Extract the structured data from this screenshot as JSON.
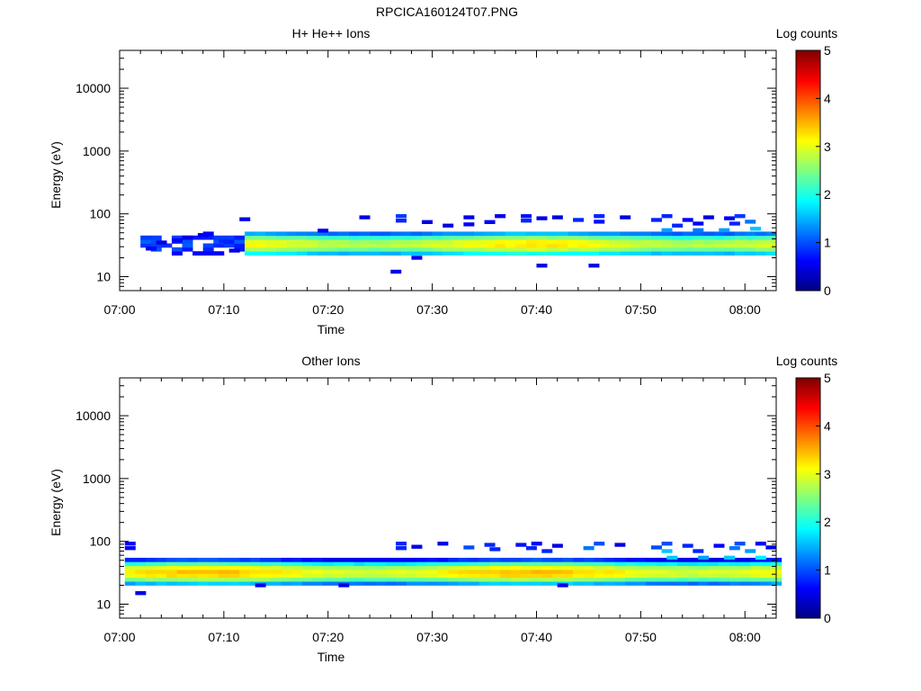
{
  "title": "RPCICA160124T07.PNG",
  "colors": {
    "axis": "#000000",
    "background": "#ffffff"
  },
  "colormap": [
    "#000080",
    "#0000ff",
    "#0080ff",
    "#00ffff",
    "#80ff80",
    "#ffff00",
    "#ff8000",
    "#ff0000",
    "#800000"
  ],
  "chart_data": [
    {
      "type": "heatmap",
      "title": "H+ He++ Ions",
      "xlabel": "Time",
      "ylabel": "Energy (eV)",
      "x_ticks": [
        "07:00",
        "07:10",
        "07:20",
        "07:30",
        "07:40",
        "07:50",
        "08:00"
      ],
      "y_ticks": [
        "10",
        "100",
        "1000",
        "10000"
      ],
      "y_scale": "log",
      "ylim": [
        6,
        40000
      ],
      "xlim_minutes": [
        0,
        63
      ],
      "colorbar": {
        "label": "Log counts",
        "ticks": [
          "0",
          "1",
          "2",
          "3",
          "4",
          "5"
        ],
        "range": [
          0,
          5
        ]
      },
      "band": {
        "pre_start_min": 0.0,
        "pre_end_min": 12.0,
        "pre_level": 1.0,
        "main_start_min": 12.0,
        "main_end_min": 63.0,
        "energy_low_eV": 22,
        "energy_high_eV": 48,
        "core_energy_eV": 33,
        "core_level": 3.0,
        "edge_level": 1.8
      },
      "sparse_cells": [
        {
          "t": 2.5,
          "e": 28,
          "v": 0.6
        },
        {
          "t": 3.5,
          "e": 35,
          "v": 0.5
        },
        {
          "t": 5.0,
          "e": 38,
          "v": 0.6
        },
        {
          "t": 6.0,
          "e": 42,
          "v": 0.5
        },
        {
          "t": 7.5,
          "e": 46,
          "v": 0.5
        },
        {
          "t": 9.5,
          "e": 37,
          "v": 0.8
        },
        {
          "t": 10.5,
          "e": 26,
          "v": 0.5
        },
        {
          "t": 11.5,
          "e": 82,
          "v": 0.5
        },
        {
          "t": 19.0,
          "e": 54,
          "v": 0.6
        },
        {
          "t": 23.0,
          "e": 88,
          "v": 0.5
        },
        {
          "t": 26.0,
          "e": 12,
          "v": 0.5
        },
        {
          "t": 26.5,
          "e": 78,
          "v": 0.8
        },
        {
          "t": 26.5,
          "e": 92,
          "v": 0.9
        },
        {
          "t": 28.0,
          "e": 20,
          "v": 0.5
        },
        {
          "t": 29.0,
          "e": 74,
          "v": 0.5
        },
        {
          "t": 31.0,
          "e": 65,
          "v": 0.5
        },
        {
          "t": 33.0,
          "e": 68,
          "v": 0.6
        },
        {
          "t": 33.0,
          "e": 88,
          "v": 0.5
        },
        {
          "t": 35.0,
          "e": 74,
          "v": 0.6
        },
        {
          "t": 36.0,
          "e": 92,
          "v": 0.5
        },
        {
          "t": 38.5,
          "e": 78,
          "v": 0.8
        },
        {
          "t": 38.5,
          "e": 92,
          "v": 0.7
        },
        {
          "t": 40.0,
          "e": 15,
          "v": 0.5
        },
        {
          "t": 40.0,
          "e": 85,
          "v": 0.5
        },
        {
          "t": 41.5,
          "e": 88,
          "v": 0.5
        },
        {
          "t": 43.5,
          "e": 80,
          "v": 0.8
        },
        {
          "t": 45.0,
          "e": 15,
          "v": 0.5
        },
        {
          "t": 45.5,
          "e": 75,
          "v": 0.7
        },
        {
          "t": 45.5,
          "e": 92,
          "v": 0.8
        },
        {
          "t": 48.0,
          "e": 88,
          "v": 0.5
        },
        {
          "t": 51.0,
          "e": 80,
          "v": 0.8
        },
        {
          "t": 52.0,
          "e": 92,
          "v": 0.8
        },
        {
          "t": 53.0,
          "e": 65,
          "v": 0.8
        },
        {
          "t": 54.0,
          "e": 80,
          "v": 0.6
        },
        {
          "t": 55.0,
          "e": 70,
          "v": 0.6
        },
        {
          "t": 56.0,
          "e": 88,
          "v": 0.5
        },
        {
          "t": 58.0,
          "e": 85,
          "v": 0.6
        },
        {
          "t": 58.5,
          "e": 70,
          "v": 0.8
        },
        {
          "t": 59.0,
          "e": 92,
          "v": 0.9
        },
        {
          "t": 60.0,
          "e": 75,
          "v": 1.2
        },
        {
          "t": 52.0,
          "e": 55,
          "v": 1.4
        },
        {
          "t": 55.0,
          "e": 55,
          "v": 1.2
        },
        {
          "t": 57.5,
          "e": 55,
          "v": 1.4
        },
        {
          "t": 60.5,
          "e": 58,
          "v": 1.6
        }
      ]
    },
    {
      "type": "heatmap",
      "title": "Other Ions",
      "xlabel": "Time",
      "ylabel": "Energy (eV)",
      "x_ticks": [
        "07:00",
        "07:10",
        "07:20",
        "07:30",
        "07:40",
        "07:50",
        "08:00"
      ],
      "y_ticks": [
        "10",
        "100",
        "1000",
        "10000"
      ],
      "y_scale": "log",
      "ylim": [
        6,
        40000
      ],
      "xlim_minutes": [
        0,
        63
      ],
      "colorbar": {
        "label": "Log counts",
        "ticks": [
          "0",
          "1",
          "2",
          "3",
          "4",
          "5"
        ],
        "range": [
          0,
          5
        ]
      },
      "band": {
        "pre_start_min": 0.0,
        "pre_end_min": 0.0,
        "pre_level": 1.0,
        "main_start_min": 0.0,
        "main_end_min": 63.0,
        "energy_low_eV": 20,
        "energy_high_eV": 48,
        "core_energy_eV": 32,
        "core_level": 3.2,
        "edge_level": 2.0
      },
      "sparse_cells": [
        {
          "t": 0.5,
          "e": 92,
          "v": 0.6
        },
        {
          "t": 0.5,
          "e": 78,
          "v": 0.6
        },
        {
          "t": 1.5,
          "e": 15,
          "v": 0.5
        },
        {
          "t": 13.0,
          "e": 20,
          "v": 0.5
        },
        {
          "t": 21.0,
          "e": 20,
          "v": 0.5
        },
        {
          "t": 26.5,
          "e": 92,
          "v": 0.8
        },
        {
          "t": 26.5,
          "e": 78,
          "v": 0.8
        },
        {
          "t": 28.0,
          "e": 82,
          "v": 0.5
        },
        {
          "t": 30.5,
          "e": 92,
          "v": 0.5
        },
        {
          "t": 33.0,
          "e": 80,
          "v": 1.0
        },
        {
          "t": 35.0,
          "e": 88,
          "v": 0.8
        },
        {
          "t": 35.5,
          "e": 75,
          "v": 0.8
        },
        {
          "t": 38.0,
          "e": 88,
          "v": 0.7
        },
        {
          "t": 39.0,
          "e": 78,
          "v": 0.8
        },
        {
          "t": 39.5,
          "e": 92,
          "v": 0.6
        },
        {
          "t": 40.5,
          "e": 70,
          "v": 0.8
        },
        {
          "t": 41.5,
          "e": 85,
          "v": 0.5
        },
        {
          "t": 42.0,
          "e": 20,
          "v": 0.5
        },
        {
          "t": 44.5,
          "e": 78,
          "v": 1.2
        },
        {
          "t": 45.5,
          "e": 92,
          "v": 1.0
        },
        {
          "t": 47.5,
          "e": 88,
          "v": 0.5
        },
        {
          "t": 51.0,
          "e": 80,
          "v": 1.0
        },
        {
          "t": 52.0,
          "e": 70,
          "v": 1.6
        },
        {
          "t": 52.0,
          "e": 92,
          "v": 1.0
        },
        {
          "t": 54.0,
          "e": 85,
          "v": 0.8
        },
        {
          "t": 55.0,
          "e": 70,
          "v": 0.8
        },
        {
          "t": 57.0,
          "e": 85,
          "v": 0.6
        },
        {
          "t": 58.5,
          "e": 78,
          "v": 1.2
        },
        {
          "t": 59.0,
          "e": 92,
          "v": 1.0
        },
        {
          "t": 60.0,
          "e": 70,
          "v": 1.4
        },
        {
          "t": 61.0,
          "e": 92,
          "v": 0.6
        },
        {
          "t": 62.0,
          "e": 80,
          "v": 0.6
        },
        {
          "t": 52.5,
          "e": 55,
          "v": 1.6
        },
        {
          "t": 55.5,
          "e": 55,
          "v": 1.4
        },
        {
          "t": 58.0,
          "e": 55,
          "v": 1.6
        },
        {
          "t": 61.0,
          "e": 55,
          "v": 1.8
        }
      ]
    }
  ]
}
